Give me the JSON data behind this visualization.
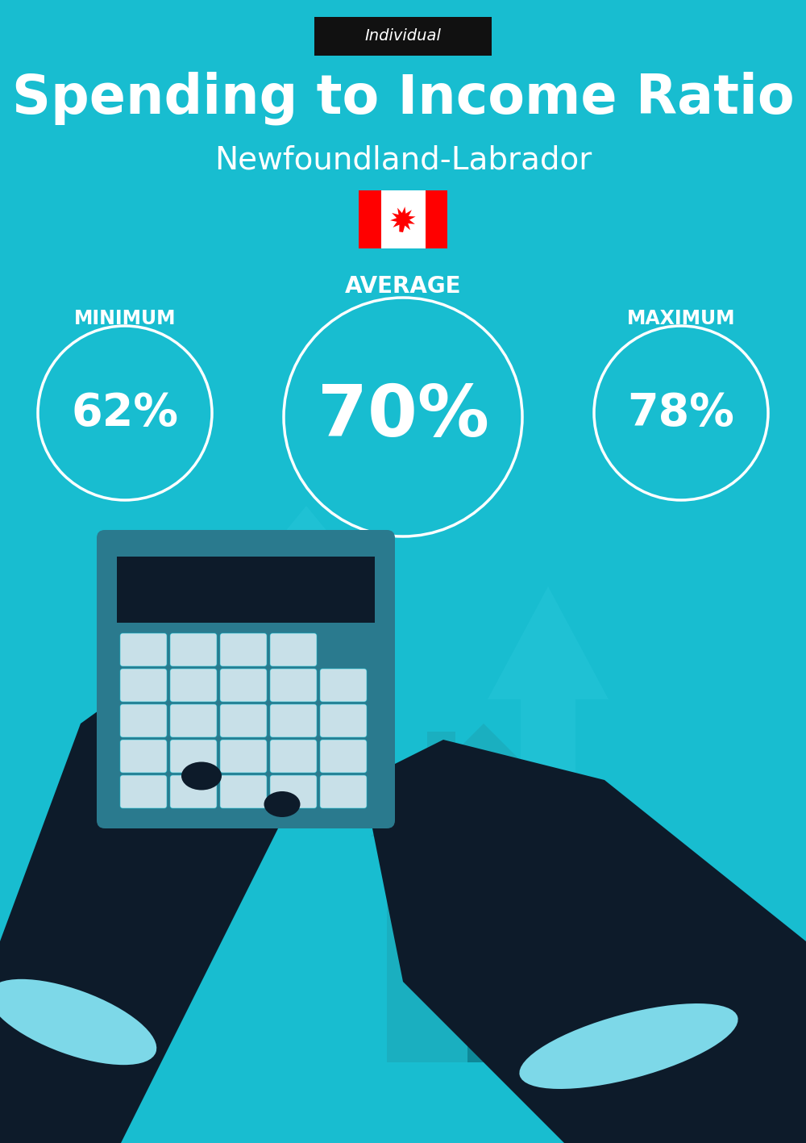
{
  "bg_color": "#18BDD0",
  "title": "Spending to Income Ratio",
  "subtitle": "Newfoundland-Labrador",
  "tag_label": "Individual",
  "tag_bg": "#111111",
  "tag_text_color": "#ffffff",
  "title_color": "#ffffff",
  "subtitle_color": "#ffffff",
  "min_label": "MINIMUM",
  "avg_label": "AVERAGE",
  "max_label": "MAXIMUM",
  "min_value": "62%",
  "avg_value": "70%",
  "max_value": "78%",
  "circle_color": "#ffffff",
  "circle_linewidth": 3,
  "value_color": "#ffffff",
  "label_color": "#ffffff",
  "flag_red": "#FF0000",
  "flag_white": "#ffffff",
  "dark_color": "#0D1B2A",
  "calc_color": "#2A7A8E",
  "house_color": "#1AAFC0",
  "arrow_color": "#25C5D8",
  "cuff_color": "#7DD8E8",
  "money_color": "#C8B84A"
}
